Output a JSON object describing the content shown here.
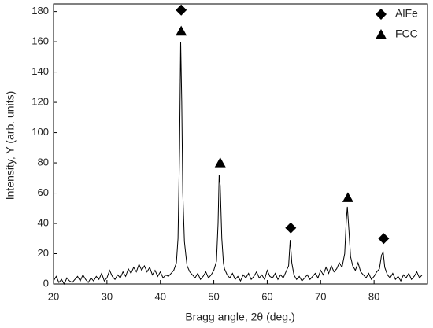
{
  "chart_data": {
    "type": "line",
    "xlabel": "Bragg angle, 2θ (deg.)",
    "ylabel": "Intensity, Y (arb. units)",
    "x": [
      20,
      20.5,
      21,
      21.5,
      22,
      22.5,
      23,
      23.5,
      24,
      24.5,
      25,
      25.5,
      26,
      26.5,
      27,
      27.5,
      28,
      28.5,
      29,
      29.5,
      30,
      30.5,
      31,
      31.5,
      32,
      32.5,
      33,
      33.5,
      34,
      34.5,
      35,
      35.5,
      36,
      36.5,
      37,
      37.5,
      38,
      38.5,
      39,
      39.5,
      40,
      40.5,
      41,
      41.5,
      42,
      42.5,
      43,
      43.3,
      43.6,
      43.8,
      44.0,
      44.2,
      44.5,
      44.8,
      45,
      45.5,
      46,
      46.5,
      47,
      47.5,
      48,
      48.5,
      49,
      49.5,
      50,
      50.5,
      50.8,
      51.0,
      51.2,
      51.5,
      51.8,
      52,
      52.5,
      53,
      53.5,
      54,
      54.5,
      55,
      55.5,
      56,
      56.5,
      57,
      57.5,
      58,
      58.5,
      59,
      59.5,
      60,
      60.5,
      61,
      61.5,
      62,
      62.5,
      63,
      63.5,
      64,
      64.3,
      64.6,
      65,
      65.5,
      66,
      66.5,
      67,
      67.5,
      68,
      68.5,
      69,
      69.5,
      70,
      70.5,
      71,
      71.5,
      72,
      72.5,
      73,
      73.5,
      74,
      74.5,
      74.8,
      75.0,
      75.3,
      75.6,
      76,
      76.5,
      77,
      77.5,
      78,
      78.5,
      79,
      79.5,
      80,
      80.5,
      81,
      81.4,
      81.7,
      82,
      82.5,
      83,
      83.5,
      84,
      84.5,
      85,
      85.5,
      86,
      86.5,
      87,
      87.5,
      88,
      88.5,
      89
    ],
    "series": [
      {
        "color": "#000000",
        "values": [
          2,
          5,
          1,
          3,
          0,
          4,
          2,
          1,
          3,
          5,
          2,
          6,
          3,
          1,
          4,
          2,
          5,
          3,
          7,
          2,
          4,
          9,
          5,
          3,
          6,
          4,
          8,
          5,
          10,
          7,
          11,
          8,
          13,
          9,
          12,
          8,
          11,
          6,
          9,
          5,
          8,
          4,
          6,
          5,
          7,
          9,
          14,
          30,
          90,
          160,
          120,
          60,
          28,
          18,
          12,
          8,
          6,
          4,
          7,
          3,
          5,
          8,
          4,
          6,
          9,
          15,
          40,
          72,
          65,
          30,
          14,
          10,
          6,
          4,
          7,
          3,
          5,
          2,
          6,
          4,
          7,
          3,
          5,
          8,
          4,
          6,
          3,
          9,
          5,
          4,
          7,
          3,
          6,
          4,
          8,
          12,
          29,
          14,
          6,
          3,
          5,
          2,
          4,
          6,
          3,
          5,
          7,
          4,
          9,
          6,
          11,
          7,
          12,
          8,
          10,
          14,
          11,
          20,
          42,
          51,
          35,
          18,
          12,
          9,
          14,
          8,
          6,
          4,
          7,
          3,
          5,
          8,
          10,
          19,
          21,
          11,
          6,
          4,
          7,
          3,
          5,
          2,
          6,
          4,
          7,
          3,
          5,
          8,
          4,
          6
        ]
      }
    ],
    "xlim": [
      20,
      90
    ],
    "ylim": [
      0,
      185
    ],
    "xticks": [
      20,
      30,
      40,
      50,
      60,
      70,
      80
    ],
    "yticks": [
      0,
      20,
      40,
      60,
      80,
      100,
      120,
      140,
      160,
      180
    ],
    "legend": [
      {
        "name": "AlFe",
        "shape": "diamond"
      },
      {
        "name": "FCC",
        "shape": "triangle"
      }
    ],
    "annotations": [
      {
        "shape": "diamond",
        "x": 43.9,
        "y": 181
      },
      {
        "shape": "triangle",
        "x": 43.9,
        "y": 167
      },
      {
        "shape": "triangle",
        "x": 51.2,
        "y": 80
      },
      {
        "shape": "diamond",
        "x": 64.4,
        "y": 37
      },
      {
        "shape": "triangle",
        "x": 75.1,
        "y": 57
      },
      {
        "shape": "diamond",
        "x": 81.8,
        "y": 30
      }
    ]
  }
}
